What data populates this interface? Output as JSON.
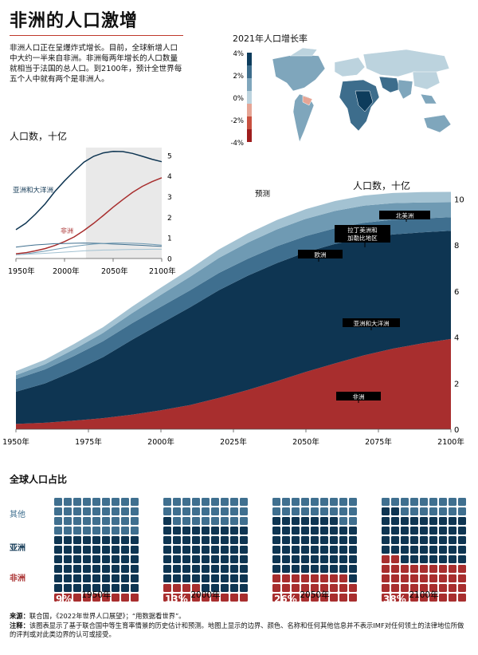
{
  "title": "非洲的人口激增",
  "intro": "非洲人口正在呈爆炸式增长。目前，全球新增人口中大约一半来自非洲。非洲每两年增长的人口数量就相当于法国的总人口。到2100年，预计全世界每五个人中就有两个是非洲人。",
  "map": {
    "title": "2021年人口增长率",
    "scale_labels": [
      "4%",
      "2%",
      "0%",
      "-2%",
      "-4%"
    ],
    "colors": [
      "#0d3c5c",
      "#3d6d8c",
      "#7fa6bc",
      "#bcd3de",
      "#e6a595",
      "#c8503f",
      "#9e1d1d"
    ]
  },
  "source": {
    "label": "来源：",
    "text": "联合国，《2022年世界人口展望》；“用数据看世界”。",
    "note_label": "注释：",
    "note": "该图表显示了基于联合国中等生育率情景的历史估计和预测。地图上显示的边界、颜色、名称和任何其他信息并不表示IMF对任何领土的法律地位所做的评判或对此类边界的认可或接受。"
  },
  "colors": {
    "africa": "#a82e2e",
    "asia": "#0e3552",
    "europe": "#3f6f8f",
    "latam": "#6f9ab3",
    "namerica": "#a3c2d2",
    "shade": "#e9e9e9"
  },
  "chart_data": [
    {
      "type": "line",
      "title": "人口数，十亿",
      "x": [
        1950,
        1960,
        1970,
        1980,
        1990,
        2000,
        2010,
        2020,
        2030,
        2040,
        2050,
        2060,
        2070,
        2080,
        2090,
        2100
      ],
      "series": [
        {
          "name": "亚洲和大洋洲",
          "values": [
            1.4,
            1.71,
            2.15,
            2.65,
            3.25,
            3.77,
            4.24,
            4.68,
            4.96,
            5.13,
            5.2,
            5.19,
            5.1,
            4.96,
            4.82,
            4.7
          ]
        },
        {
          "name": "非洲",
          "values": [
            0.23,
            0.28,
            0.37,
            0.48,
            0.63,
            0.82,
            1.05,
            1.36,
            1.71,
            2.09,
            2.49,
            2.86,
            3.21,
            3.5,
            3.73,
            3.92
          ]
        },
        {
          "values": [
            0.55,
            0.61,
            0.66,
            0.69,
            0.72,
            0.73,
            0.74,
            0.75,
            0.74,
            0.73,
            0.7,
            0.68,
            0.66,
            0.64,
            0.61,
            0.59
          ]
        },
        {
          "values": [
            0.17,
            0.22,
            0.29,
            0.36,
            0.44,
            0.52,
            0.59,
            0.65,
            0.7,
            0.73,
            0.75,
            0.75,
            0.74,
            0.72,
            0.69,
            0.65
          ]
        },
        {
          "values": [
            0.17,
            0.2,
            0.23,
            0.25,
            0.28,
            0.31,
            0.34,
            0.37,
            0.39,
            0.41,
            0.42,
            0.43,
            0.44,
            0.44,
            0.45,
            0.45
          ]
        }
      ],
      "projection_start": 2022,
      "xlim": [
        1950,
        2100
      ],
      "ylim": [
        0,
        5.5
      ],
      "xticks": [
        "1950年",
        "2000年",
        "2050年",
        "2100年"
      ],
      "yticks": [
        0,
        1,
        2,
        3,
        4,
        5
      ],
      "labels": {
        "asia": "亚洲和大洋洲",
        "africa": "非洲"
      }
    },
    {
      "type": "area",
      "title": "人口数，十亿",
      "projection_label": "预测",
      "x": [
        1950,
        1960,
        1970,
        1980,
        1990,
        2000,
        2010,
        2020,
        2030,
        2040,
        2050,
        2060,
        2070,
        2080,
        2090,
        2100
      ],
      "series": [
        {
          "name": "非洲",
          "values": [
            0.23,
            0.28,
            0.37,
            0.48,
            0.63,
            0.82,
            1.05,
            1.36,
            1.71,
            2.09,
            2.49,
            2.86,
            3.21,
            3.5,
            3.73,
            3.92
          ]
        },
        {
          "name": "亚洲和大洋洲",
          "values": [
            1.4,
            1.71,
            2.15,
            2.65,
            3.25,
            3.77,
            4.24,
            4.68,
            4.96,
            5.13,
            5.2,
            5.19,
            5.1,
            4.96,
            4.82,
            4.7
          ]
        },
        {
          "name": "欧洲",
          "values": [
            0.55,
            0.61,
            0.66,
            0.69,
            0.72,
            0.73,
            0.74,
            0.75,
            0.74,
            0.73,
            0.7,
            0.68,
            0.66,
            0.64,
            0.61,
            0.59
          ]
        },
        {
          "name": "拉丁美洲和加勒比地区",
          "values": [
            0.17,
            0.22,
            0.29,
            0.36,
            0.44,
            0.52,
            0.59,
            0.65,
            0.7,
            0.73,
            0.75,
            0.75,
            0.74,
            0.72,
            0.69,
            0.65
          ]
        },
        {
          "name": "北美洲",
          "values": [
            0.17,
            0.2,
            0.23,
            0.25,
            0.28,
            0.31,
            0.34,
            0.37,
            0.39,
            0.41,
            0.42,
            0.43,
            0.44,
            0.44,
            0.45,
            0.45
          ]
        }
      ],
      "labels": {
        "namerica": "北美洲",
        "latam1": "拉丁美洲和",
        "latam2": "加勒比地区",
        "europe": "欧洲",
        "asia": "亚洲和大洋洲",
        "africa": "非洲"
      },
      "xlim": [
        1950,
        2100
      ],
      "ylim": [
        0,
        10.5
      ],
      "xticks": [
        "1950年",
        "1975年",
        "2000年",
        "2025年",
        "2050年",
        "2075年",
        "2100年"
      ],
      "yticks": [
        0,
        2,
        4,
        6,
        8,
        10
      ]
    },
    {
      "type": "waffle",
      "title": "全球人口占比",
      "row_labels": [
        "其他",
        "亚洲",
        "非洲"
      ],
      "groups": [
        {
          "year": "1950年",
          "africa_pct": 9,
          "asia_pct": 55,
          "label": "9%"
        },
        {
          "year": "2000年",
          "africa_pct": 13,
          "asia_pct": 61,
          "label": "13%"
        },
        {
          "year": "2050年",
          "africa_pct": 26,
          "asia_pct": 54,
          "label": "26%"
        },
        {
          "year": "2100年",
          "africa_pct": 38,
          "asia_pct": 45,
          "label": "38%"
        }
      ]
    }
  ]
}
